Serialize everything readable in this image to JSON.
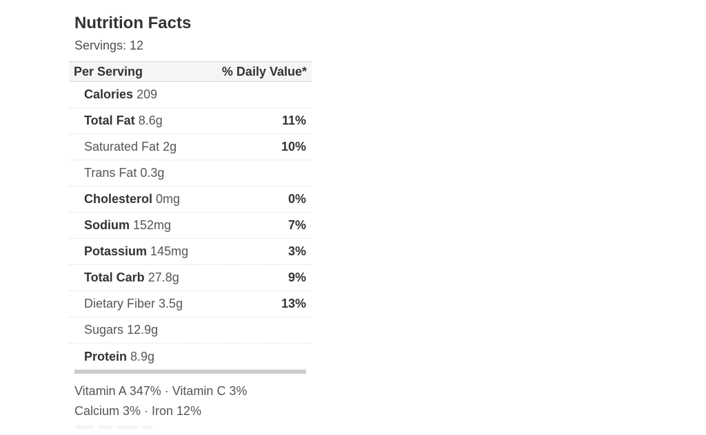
{
  "label": {
    "title": "Nutrition Facts",
    "servings": "Servings: 12",
    "header": {
      "left": "Per Serving",
      "right": "% Daily Value*"
    },
    "rows": [
      {
        "name": "Calories",
        "amount": "209",
        "dv": ""
      },
      {
        "name": "Total Fat",
        "amount": "8.6g",
        "dv": "11%"
      },
      {
        "name": "Saturated Fat",
        "amount": "2g",
        "dv": "10%"
      },
      {
        "name": "Trans Fat",
        "amount": "0.3g",
        "dv": ""
      },
      {
        "name": "Cholesterol",
        "amount": "0mg",
        "dv": "0%"
      },
      {
        "name": "Sodium",
        "amount": "152mg",
        "dv": "7%"
      },
      {
        "name": "Potassium",
        "amount": "145mg",
        "dv": "3%"
      },
      {
        "name": "Total Carb",
        "amount": "27.8g",
        "dv": "9%"
      },
      {
        "name": "Dietary Fiber",
        "amount": "3.5g",
        "dv": "13%"
      },
      {
        "name": "Sugars",
        "amount": "12.9g",
        "dv": ""
      },
      {
        "name": "Protein",
        "amount": "8.9g",
        "dv": ""
      }
    ],
    "micronutrients": {
      "line1": "Vitamin A 347% · Vitamin C 3%",
      "line2": "Calcium 3% · Iron 12%"
    },
    "colors": {
      "bold_text": "#333333",
      "regular_text": "#555555",
      "header_background": "#f5f5f5",
      "header_border": "#d9d9d9",
      "dotted_divider": "#dcdcdc",
      "thick_bar": "#cccccc",
      "page_background": "#ffffff"
    }
  }
}
